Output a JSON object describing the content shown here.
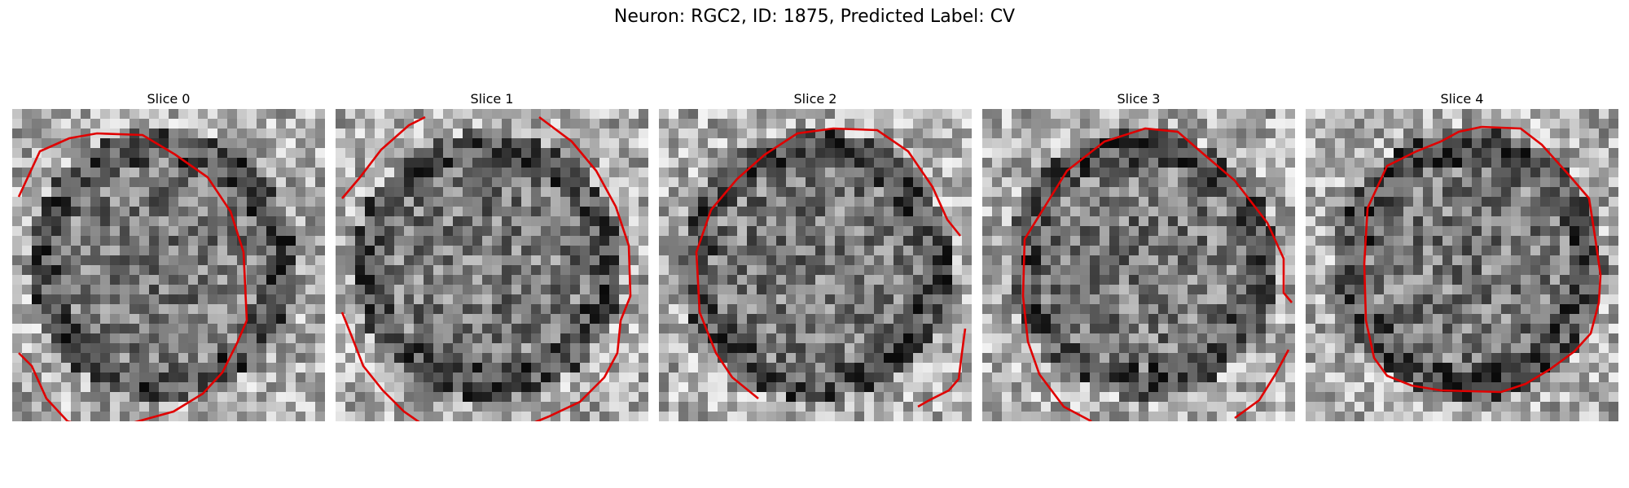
{
  "figure": {
    "title": "Neuron: RGC2, ID: 1875, Predicted Label: CV"
  },
  "panels": [
    {
      "title": "Slice 0",
      "seed": 11,
      "shift": 0
    },
    {
      "title": "Slice 1",
      "seed": 23,
      "shift": 1
    },
    {
      "title": "Slice 2",
      "seed": 37,
      "shift": 2
    },
    {
      "title": "Slice 3",
      "seed": 51,
      "shift": 3
    },
    {
      "title": "Slice 4",
      "seed": 67,
      "shift": 4
    }
  ],
  "colors": {
    "contour": "#e00000"
  }
}
